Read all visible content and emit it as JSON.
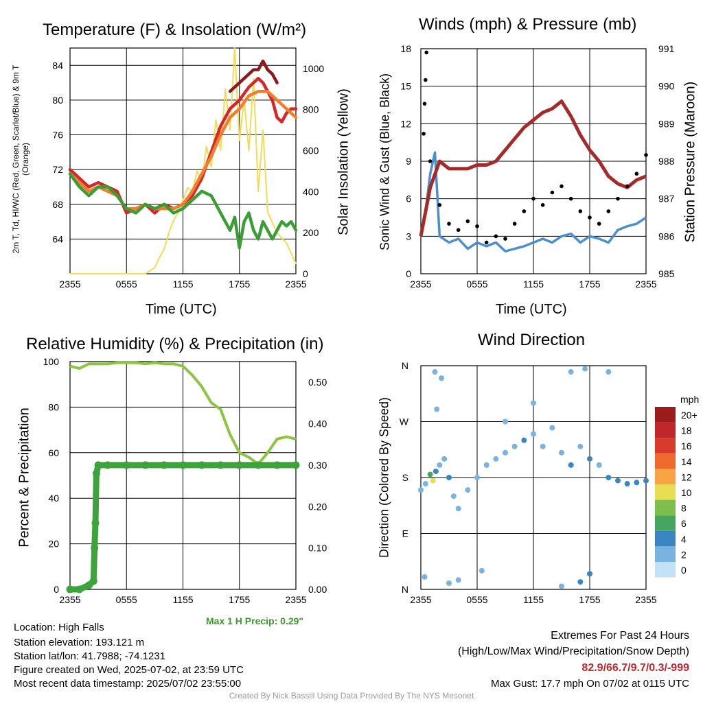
{
  "panels": {
    "temp": {
      "title": "Temperature (F) & Insolation (W/m²)",
      "ylabel_left": "2m T, Td, HI/WC (Red, Green, Scarlet/Blue) & 9m T (Orange)",
      "ylabel_right": "Solar Insolation (Yellow)",
      "xlabel": "Time (UTC)"
    },
    "wind": {
      "title": "Winds (mph) & Pressure (mb)",
      "ylabel_left": "Sonic Wind & Gust (Blue, Black)",
      "ylabel_right": "Station Pressure (Maroon)",
      "xlabel": "Time (UTC)"
    },
    "rh": {
      "title": "Relative Humidity (%) & Precipitation (in)",
      "ylabel_left": "Percent & Precipitation",
      "max_precip": "Max 1 H Precip: 0.29\""
    },
    "dir": {
      "title": "Wind Direction",
      "ylabel_left": "Direction (Colored By Speed)",
      "legend_unit": "mph",
      "legend_labels": [
        "20+",
        "18",
        "16",
        "14",
        "12",
        "10",
        "8",
        "6",
        "4",
        "2",
        "0"
      ],
      "legend_colors": [
        "#9c1c1c",
        "#c0272d",
        "#d83a2c",
        "#ef6a2d",
        "#f9a444",
        "#e8de52",
        "#7dbf4c",
        "#45a561",
        "#3a86c2",
        "#7ab3df",
        "#c3e2f5"
      ]
    }
  },
  "info": {
    "location": "Location: High Falls",
    "elevation": "Station elevation: 193.121 m",
    "latlon": "Station lat/lon: 41.7988; -74.1231",
    "created": "Figure created on Wed, 2025-07-02, at 23:59 UTC",
    "recent": "Most recent data timestamp: 2025/07/02 23:55:00"
  },
  "extremes": {
    "heading": "Extremes For Past 24 Hours",
    "subheading": "(High/Low/Max Wind/Precipitation/Snow Depth)",
    "values": "82.9/66.7/9.7/0.3/-999",
    "max_gust": "Max Gust: 17.7 mph On 07/02 at 0115 UTC"
  },
  "credit": "Created By Nick Bassill Using Data Provided By The NYS Mesonet",
  "chart_data": [
    {
      "type": "line",
      "title": "Temperature (F) & Insolation (W/m²)",
      "xlabel": "Time (UTC)",
      "x_ticks": [
        "2355",
        "0555",
        "1155",
        "1755",
        "2355"
      ],
      "x_unit": "hours since 2355 UTC",
      "ylim_left": [
        60,
        86
      ],
      "y_ticks_left": [
        64,
        68,
        72,
        76,
        80,
        84
      ],
      "ylim_right": [
        0,
        1100
      ],
      "y_ticks_right": [
        0,
        200,
        400,
        600,
        800,
        1000
      ],
      "series": [
        {
          "name": "2m T",
          "color": "#d62728",
          "axis": "left",
          "x": [
            0,
            1,
            2,
            3,
            4,
            5,
            6,
            7,
            8,
            9,
            10,
            11,
            12,
            13,
            14,
            15,
            16,
            17,
            18,
            19,
            19.5,
            20,
            20.5,
            21,
            21.5,
            22,
            22.5,
            23,
            23.5,
            24
          ],
          "y": [
            72,
            71,
            70,
            70.5,
            70,
            69.5,
            67,
            67.5,
            68,
            67,
            68,
            67.5,
            68,
            69,
            71,
            74,
            77,
            79,
            80,
            81.5,
            82,
            82.5,
            82,
            81,
            80,
            78,
            77.5,
            78.5,
            79,
            79
          ]
        },
        {
          "name": "9m T",
          "color": "#f07f2d",
          "axis": "left",
          "x": [
            0,
            1,
            2,
            3,
            4,
            5,
            6,
            7,
            8,
            9,
            10,
            11,
            12,
            13,
            14,
            15,
            16,
            17,
            18,
            19,
            20,
            21,
            22,
            23,
            24
          ],
          "y": [
            71.5,
            70.5,
            69.5,
            70,
            69.5,
            69,
            67.5,
            67.5,
            68,
            67.5,
            67.5,
            67.5,
            68,
            69.5,
            71.5,
            73.5,
            76,
            78,
            79,
            80.5,
            81,
            81,
            80,
            79,
            78
          ]
        },
        {
          "name": "HI/WC",
          "color": "#8b1a1a",
          "axis": "left",
          "x": [
            17,
            18,
            19,
            19.5,
            20,
            20.5,
            21,
            21.5,
            22
          ],
          "y": [
            81,
            82,
            83,
            83.5,
            83.5,
            84.5,
            83.5,
            83,
            82
          ]
        },
        {
          "name": "Td",
          "color": "#3a9e34",
          "axis": "left",
          "x": [
            0,
            1,
            2,
            3,
            4,
            5,
            6,
            7,
            8,
            9,
            10,
            11,
            12,
            13,
            14,
            15,
            16,
            16.5,
            17,
            17.5,
            18,
            18.5,
            19,
            19.5,
            20,
            20.5,
            21,
            21.5,
            22,
            22.5,
            23,
            23.5,
            24
          ],
          "y": [
            71.5,
            70,
            69,
            70,
            70,
            69,
            67.5,
            67,
            68,
            67.5,
            68,
            67,
            67.5,
            68.5,
            69.5,
            69,
            67,
            66,
            65,
            66.5,
            63,
            66,
            67,
            65,
            64,
            66,
            65,
            64,
            65,
            66,
            65.5,
            66,
            65
          ]
        },
        {
          "name": "Solar Insolation",
          "color": "#f2dc53",
          "axis": "right",
          "x": [
            0,
            8,
            9,
            9.5,
            10,
            10.5,
            11,
            11.5,
            12,
            12.5,
            13,
            13.5,
            14,
            14.5,
            15,
            15.5,
            16,
            16.5,
            17,
            17.5,
            18,
            18.5,
            19,
            19.5,
            20,
            20.5,
            21,
            22,
            23,
            24
          ],
          "y": [
            0,
            0,
            30,
            80,
            120,
            200,
            260,
            300,
            360,
            420,
            400,
            500,
            450,
            620,
            520,
            750,
            600,
            900,
            700,
            1100,
            650,
            850,
            600,
            950,
            400,
            700,
            300,
            200,
            150,
            50
          ]
        }
      ]
    },
    {
      "type": "line",
      "title": "Winds (mph) & Pressure (mb)",
      "xlabel": "Time (UTC)",
      "x_ticks": [
        "2355",
        "0555",
        "1155",
        "1755",
        "2355"
      ],
      "x_unit": "hours since 2355 UTC",
      "ylim_left": [
        0,
        18
      ],
      "y_ticks_left": [
        0,
        3,
        6,
        9,
        12,
        15,
        18
      ],
      "ylim_right": [
        985,
        991
      ],
      "y_ticks_right": [
        985,
        986,
        987,
        988,
        989,
        990,
        991
      ],
      "series": [
        {
          "name": "Sonic Wind",
          "color": "#4a8fcf",
          "axis": "left",
          "x": [
            0,
            0.5,
            1,
            1.5,
            2,
            3,
            4,
            5,
            6,
            7,
            8,
            9,
            10,
            11,
            12,
            13,
            14,
            15,
            16,
            17,
            18,
            19,
            20,
            21,
            22,
            23,
            24
          ],
          "y": [
            3,
            5,
            8,
            9.7,
            3,
            2.5,
            2.8,
            2,
            2.5,
            2.2,
            2.5,
            1.8,
            2,
            2.2,
            2.5,
            2.8,
            2.5,
            3,
            3.2,
            2.5,
            3,
            2.8,
            2.5,
            3.5,
            3.8,
            4,
            4.5
          ]
        },
        {
          "name": "Gust",
          "color": "#000000",
          "axis": "left",
          "points": [
            [
              0.6,
              17.7
            ],
            [
              0.5,
              15.5
            ],
            [
              0.4,
              13.6
            ],
            [
              0.3,
              11.2
            ],
            [
              1,
              9
            ],
            [
              2,
              5.5
            ],
            [
              3,
              4
            ],
            [
              4,
              3.5
            ],
            [
              5,
              4.2
            ],
            [
              6,
              3.8
            ],
            [
              7,
              2.5
            ],
            [
              8,
              3
            ],
            [
              9,
              2.8
            ],
            [
              10,
              4
            ],
            [
              11,
              5
            ],
            [
              12,
              6
            ],
            [
              13,
              5.5
            ],
            [
              14,
              6.5
            ],
            [
              15,
              7
            ],
            [
              16,
              6
            ],
            [
              17,
              5
            ],
            [
              18,
              4.5
            ],
            [
              19,
              4
            ],
            [
              20,
              5
            ],
            [
              21,
              6
            ],
            [
              22,
              7
            ],
            [
              23,
              8
            ],
            [
              24,
              9.5
            ]
          ]
        },
        {
          "name": "Station Pressure",
          "color": "#a52a2a",
          "axis": "right",
          "x": [
            0,
            1,
            2,
            3,
            4,
            5,
            6,
            7,
            8,
            9,
            10,
            11,
            12,
            13,
            14,
            15,
            16,
            17,
            18,
            19,
            20,
            21,
            22,
            23,
            24
          ],
          "y": [
            986,
            987.3,
            988,
            987.8,
            987.8,
            987.8,
            987.9,
            987.9,
            988,
            988.3,
            988.6,
            988.9,
            989.1,
            989.3,
            989.4,
            989.6,
            989.2,
            988.7,
            988.3,
            988,
            987.6,
            987.4,
            987.3,
            987.5,
            987.6
          ]
        }
      ]
    },
    {
      "type": "line",
      "title": "Relative Humidity (%) & Precipitation (in)",
      "x_ticks": [
        "2355",
        "0555",
        "1155",
        "1755",
        "2355"
      ],
      "x_unit": "hours since 2355 UTC",
      "ylim_left": [
        0,
        100
      ],
      "y_ticks_left": [
        0,
        20,
        40,
        60,
        80,
        100
      ],
      "ylim_right": [
        0,
        0.55
      ],
      "y_ticks_right": [
        "0.00",
        "0.10",
        "0.20",
        "0.30",
        "0.40",
        "0.50"
      ],
      "series": [
        {
          "name": "Relative Humidity",
          "color": "#8cc640",
          "axis": "left",
          "x": [
            0,
            1,
            2,
            3,
            4,
            5,
            6,
            7,
            8,
            9,
            10,
            11,
            12,
            13,
            14,
            15,
            16,
            17,
            18,
            19,
            20,
            21,
            22,
            23,
            24
          ],
          "y": [
            98,
            97,
            99,
            99,
            99,
            99.5,
            99.5,
            99.5,
            99,
            99.5,
            99,
            99,
            98,
            94,
            89,
            82,
            79,
            68,
            60,
            58,
            55,
            60,
            66,
            67,
            66
          ]
        },
        {
          "name": "Precipitation",
          "color": "#3da33b",
          "axis": "right",
          "x": [
            0,
            1,
            2,
            2.5,
            2.6,
            2.7,
            2.8,
            3,
            4,
            6,
            8,
            10,
            12,
            14,
            16,
            18,
            20,
            22,
            24
          ],
          "y": [
            0,
            0,
            0.01,
            0.02,
            0.1,
            0.16,
            0.28,
            0.3,
            0.3,
            0.3,
            0.3,
            0.3,
            0.3,
            0.3,
            0.3,
            0.3,
            0.3,
            0.3,
            0.3
          ]
        }
      ]
    },
    {
      "type": "scatter",
      "title": "Wind Direction",
      "x_ticks": [
        "2355",
        "0555",
        "1155",
        "1755",
        "2355"
      ],
      "x_unit": "hours since 2355 UTC",
      "y_ticks": [
        "N",
        "E",
        "S",
        "W",
        "N"
      ],
      "ylim": [
        0,
        360
      ],
      "legend": "right",
      "color_by": "speed (mph)",
      "points": [
        [
          0,
          160,
          3
        ],
        [
          0.5,
          170,
          2
        ],
        [
          1,
          185,
          6
        ],
        [
          1.3,
          175,
          10
        ],
        [
          1.6,
          190,
          4
        ],
        [
          2,
          200,
          2
        ],
        [
          2.5,
          210,
          3
        ],
        [
          3,
          180,
          4
        ],
        [
          3.5,
          150,
          3
        ],
        [
          4,
          130,
          2
        ],
        [
          5,
          160,
          2
        ],
        [
          6,
          180,
          3
        ],
        [
          7,
          200,
          3
        ],
        [
          8,
          210,
          2
        ],
        [
          9,
          220,
          3
        ],
        [
          10,
          230,
          3
        ],
        [
          11,
          240,
          4
        ],
        [
          12,
          250,
          3
        ],
        [
          13,
          230,
          2
        ],
        [
          14,
          260,
          3
        ],
        [
          15,
          220,
          3
        ],
        [
          16,
          200,
          4
        ],
        [
          17,
          230,
          3
        ],
        [
          18,
          210,
          4
        ],
        [
          19,
          200,
          3
        ],
        [
          20,
          180,
          4
        ],
        [
          21,
          175,
          5
        ],
        [
          22,
          170,
          5
        ],
        [
          23,
          172,
          4
        ],
        [
          24,
          175,
          5
        ],
        [
          0.4,
          20,
          3
        ],
        [
          1.7,
          290,
          2
        ],
        [
          3,
          10,
          3
        ],
        [
          4,
          15,
          2
        ],
        [
          6.5,
          30,
          3
        ],
        [
          9,
          270,
          2
        ],
        [
          12,
          300,
          2
        ],
        [
          15,
          5,
          3
        ],
        [
          16,
          350,
          3
        ],
        [
          17,
          12,
          4
        ],
        [
          18,
          25,
          4
        ],
        [
          1.5,
          350,
          3
        ],
        [
          2.2,
          340,
          2
        ],
        [
          17.5,
          355,
          3
        ],
        [
          20,
          350,
          3
        ]
      ]
    }
  ]
}
